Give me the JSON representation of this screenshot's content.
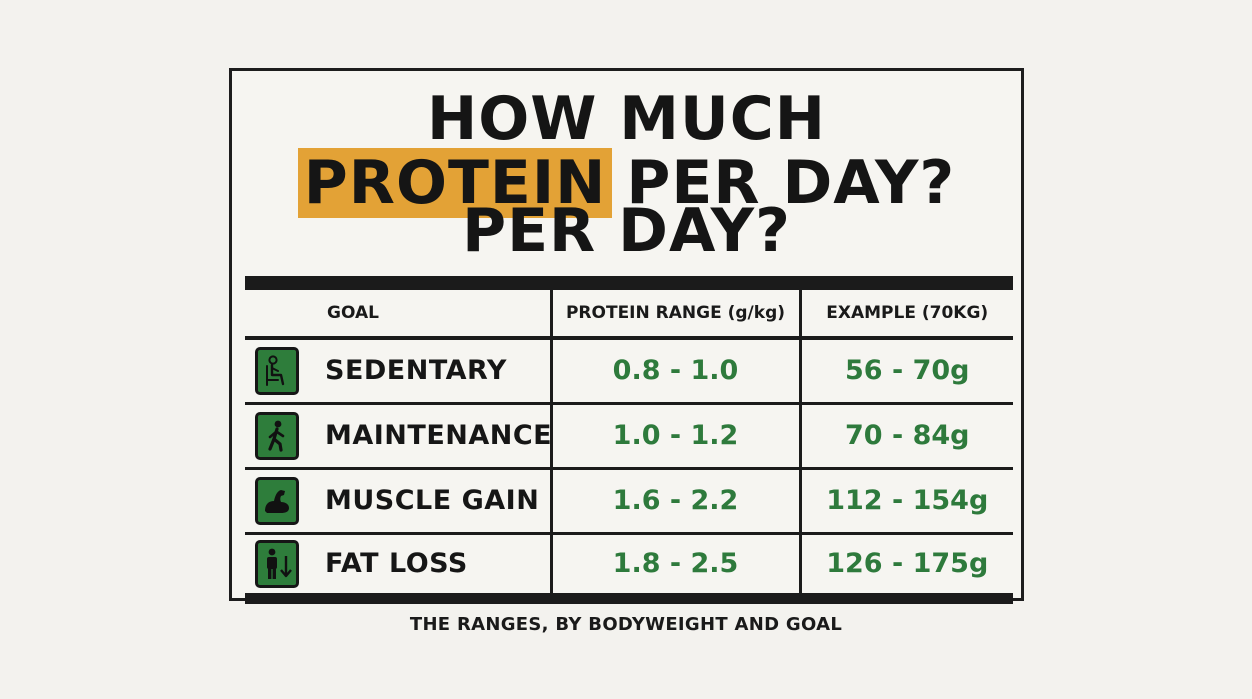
{
  "title": {
    "line1": "HOW MUCH",
    "highlight": "PROTEIN",
    "line2_rest": "PER DAY?",
    "line3": "PER DAY?"
  },
  "colors": {
    "highlight": "#e3a236",
    "value_text": "#2e7a3c",
    "icon_bg": "#2e7d3b"
  },
  "table": {
    "headers": {
      "goal": "GOAL",
      "range": "PROTEIN RANGE (g/kg)",
      "example": "EXAMPLE (70KG)"
    },
    "rows": [
      {
        "icon": "sitting-person-icon",
        "goal": "SEDENTARY",
        "range": "0.8 - 1.0",
        "example": "56 - 70g"
      },
      {
        "icon": "walking-person-icon",
        "goal": "MAINTENANCE",
        "range": "1.0 - 1.2",
        "example": "70 - 84g"
      },
      {
        "icon": "flexed-arm-icon",
        "goal": "MUSCLE GAIN",
        "range": "1.6 - 2.2",
        "example": "112 - 154g"
      },
      {
        "icon": "person-down-arrow-icon",
        "goal": "FAT LOSS",
        "range": "1.8 - 2.5",
        "example": "126 - 175g"
      }
    ]
  },
  "caption": "THE RANGES, BY BODYWEIGHT AND GOAL"
}
